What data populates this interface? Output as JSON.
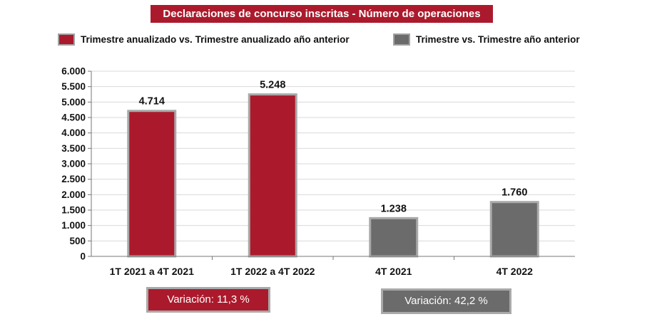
{
  "chart_data": {
    "type": "bar",
    "title": "Declaraciones de concurso inscritas - Número de operaciones",
    "categories": [
      "1T 2021 a 4T 2021",
      "1T 2022 a 4T 2022",
      "4T 2021",
      "4T 2022"
    ],
    "values": [
      4714,
      5248,
      1238,
      1760
    ],
    "value_labels": [
      "4.714",
      "5.248",
      "1.238",
      "1.760"
    ],
    "series_of_category": [
      0,
      0,
      1,
      1
    ],
    "legend": [
      {
        "name": "Trimestre anualizado vs. Trimestre anualizado año anterior",
        "color": "#ab1a2c"
      },
      {
        "name": "Trimestre vs. Trimestre año anterior",
        "color": "#6b6b6b"
      }
    ],
    "ylim": [
      0,
      6000
    ],
    "yticks": [
      0,
      500,
      1000,
      1500,
      2000,
      2500,
      3000,
      3500,
      4000,
      4500,
      5000,
      5500,
      6000
    ],
    "ytick_labels": [
      "0",
      "500",
      "1.000",
      "1.500",
      "2.000",
      "2.500",
      "3.000",
      "3.500",
      "4.000",
      "4.500",
      "5.000",
      "5.500",
      "6.000"
    ],
    "grid": true,
    "xlabel": "",
    "ylabel": ""
  },
  "annotations": {
    "variation_annual": "Variación:  11,3 %",
    "variation_quarter": "Variación: 42,2 %"
  },
  "colors": {
    "red": "#ab1a2c",
    "gray": "#6b6b6b",
    "bar_border": "#a9a9a9",
    "grid": "#d9d9d9"
  }
}
